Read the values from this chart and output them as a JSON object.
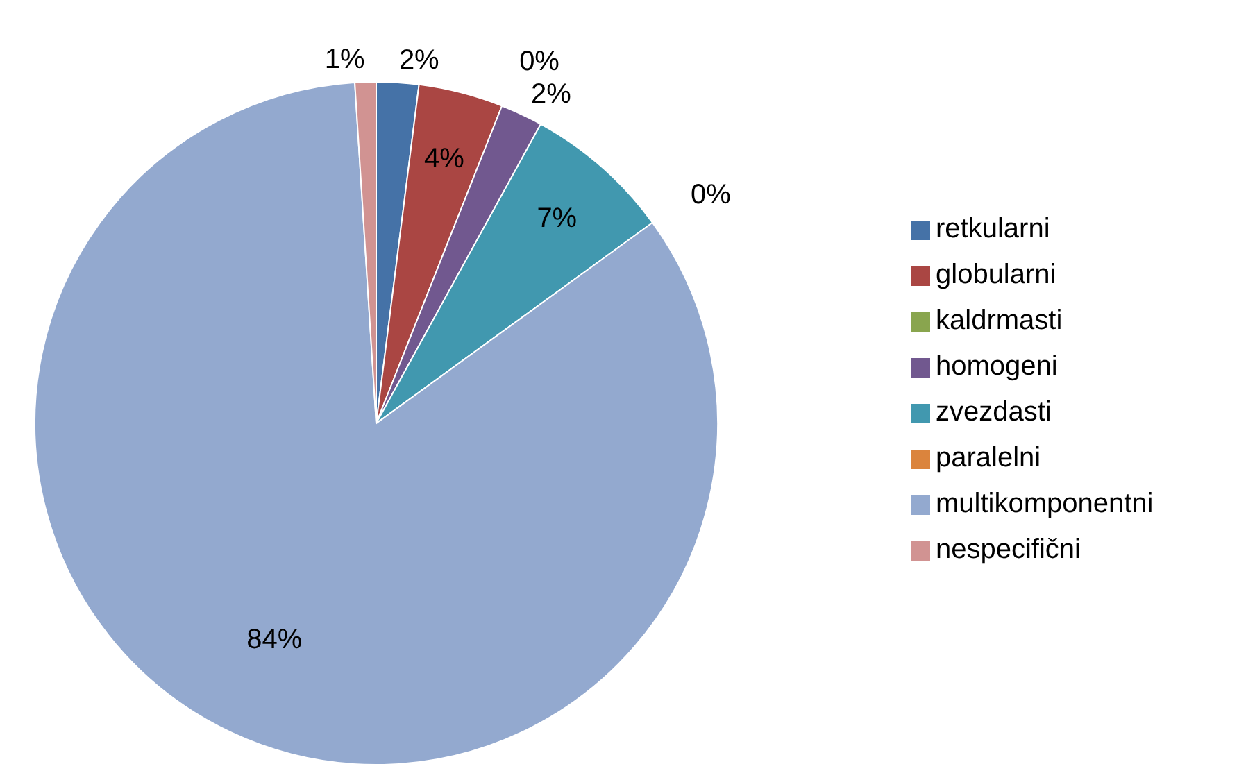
{
  "chart_data": {
    "type": "pie",
    "categories": [
      "retkularni",
      "globularni",
      "kaldrmasti",
      "homogeni",
      "zvezdasti",
      "paralelni",
      "multikomponentni",
      "nespecifični"
    ],
    "values": [
      2,
      4,
      0,
      2,
      7,
      0,
      84,
      1
    ],
    "colors": [
      "#4572a7",
      "#aa4643",
      "#89a54e",
      "#71588f",
      "#4198af",
      "#db843d",
      "#93a9cf",
      "#d19392"
    ],
    "value_labels": [
      "2%",
      "4%",
      "0%",
      "2%",
      "7%",
      "0%",
      "84%",
      "1%"
    ],
    "legend": "right"
  }
}
